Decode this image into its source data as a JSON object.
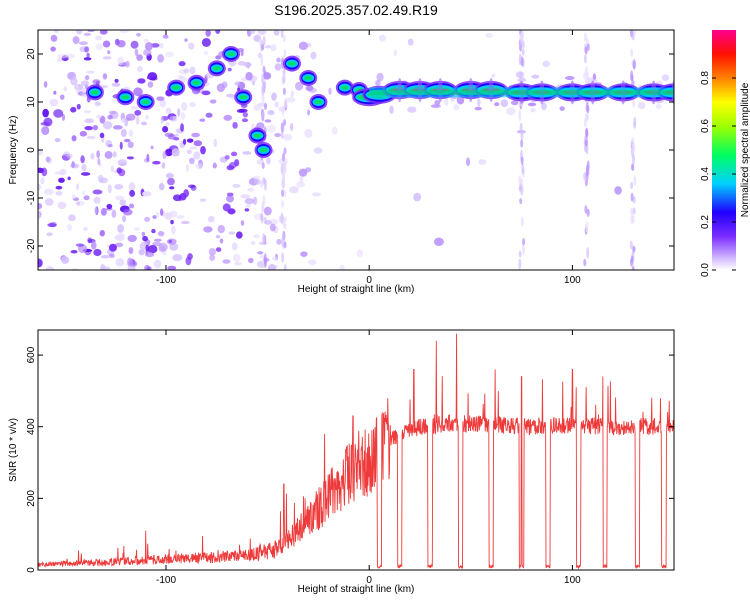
{
  "figure": {
    "title": "S196.2025.357.02.49.R19"
  },
  "colors": {
    "snr_line": "#ee3a3a",
    "spectrogram_ridge_hot": "#e8302a",
    "spectrogram_core": "#00e000",
    "spectrogram_halo": "#00c0ff",
    "spectrogram_noise": "#7a2cff"
  },
  "chart_data": [
    {
      "type": "heatmap",
      "name": "spectrogram",
      "xlabel": "Height of straight line (km)",
      "ylabel": "Frequency (Hz)",
      "xlim": [
        -163,
        150
      ],
      "ylim": [
        -25,
        25
      ],
      "xticks": [
        -100,
        0,
        100
      ],
      "yticks": [
        -20,
        -10,
        0,
        10,
        20
      ],
      "grid": false,
      "colorbar": {
        "label": "Normalized spectral amplitude",
        "range": [
          0,
          1
        ],
        "ticks": [
          0.0,
          0.2,
          0.4,
          0.6,
          0.8
        ],
        "tick_labels": [
          "0.0",
          "0.2",
          "0.4",
          "0.6",
          "0.8"
        ],
        "colormap": [
          "#ffffff",
          "#9a4dff",
          "#2a00ff",
          "#00d8ff",
          "#00ff40",
          "#ffff00",
          "#ff3000",
          "#ff0080"
        ]
      },
      "ridge": [
        {
          "x": -135,
          "y": 12
        },
        {
          "x": -120,
          "y": 11
        },
        {
          "x": -110,
          "y": 10
        },
        {
          "x": -95,
          "y": 13
        },
        {
          "x": -85,
          "y": 14
        },
        {
          "x": -75,
          "y": 17
        },
        {
          "x": -68,
          "y": 20
        },
        {
          "x": -62,
          "y": 11
        },
        {
          "x": -55,
          "y": 3
        },
        {
          "x": -52,
          "y": 0
        },
        {
          "x": -38,
          "y": 18
        },
        {
          "x": -30,
          "y": 15
        },
        {
          "x": -25,
          "y": 10
        },
        {
          "x": -12,
          "y": 13
        },
        {
          "x": -5,
          "y": 12.5
        },
        {
          "x": 0,
          "y": 11
        },
        {
          "x": 5,
          "y": 11.5
        },
        {
          "x": 15,
          "y": 12.5
        },
        {
          "x": 25,
          "y": 12.5
        },
        {
          "x": 35,
          "y": 12.5
        },
        {
          "x": 50,
          "y": 12.5
        },
        {
          "x": 60,
          "y": 12.5
        },
        {
          "x": 75,
          "y": 12
        },
        {
          "x": 85,
          "y": 12
        },
        {
          "x": 100,
          "y": 12
        },
        {
          "x": 110,
          "y": 12
        },
        {
          "x": 125,
          "y": 12
        },
        {
          "x": 140,
          "y": 12
        },
        {
          "x": 150,
          "y": 12
        }
      ]
    },
    {
      "type": "line",
      "name": "snr",
      "xlabel": "Height of straight line (km)",
      "ylabel": "SNR (10 * v/v)",
      "xlim": [
        -163,
        150
      ],
      "ylim": [
        0,
        670
      ],
      "xticks": [
        -100,
        0,
        100
      ],
      "yticks": [
        0,
        200,
        400,
        600
      ],
      "grid": false,
      "envelope": [
        {
          "x": -163,
          "y": 15
        },
        {
          "x": -140,
          "y": 20
        },
        {
          "x": -120,
          "y": 25
        },
        {
          "x": -100,
          "y": 30
        },
        {
          "x": -80,
          "y": 35
        },
        {
          "x": -60,
          "y": 40
        },
        {
          "x": -45,
          "y": 60
        },
        {
          "x": -35,
          "y": 110
        },
        {
          "x": -25,
          "y": 170
        },
        {
          "x": -15,
          "y": 240
        },
        {
          "x": -5,
          "y": 290
        },
        {
          "x": 5,
          "y": 340
        },
        {
          "x": 15,
          "y": 380
        },
        {
          "x": 25,
          "y": 400
        },
        {
          "x": 40,
          "y": 410
        },
        {
          "x": 60,
          "y": 405
        },
        {
          "x": 80,
          "y": 400
        },
        {
          "x": 100,
          "y": 405
        },
        {
          "x": 120,
          "y": 400
        },
        {
          "x": 150,
          "y": 400
        }
      ],
      "dropouts_x": [
        5,
        15,
        30,
        45,
        60,
        75,
        88,
        103,
        116,
        132,
        145
      ],
      "peaks": [
        {
          "x": 33,
          "y": 640
        },
        {
          "x": 43,
          "y": 660
        },
        {
          "x": 22,
          "y": 560
        },
        {
          "x": 62,
          "y": 560
        },
        {
          "x": 75,
          "y": 540
        },
        {
          "x": 100,
          "y": 560
        },
        {
          "x": 115,
          "y": 540
        },
        {
          "x": -8,
          "y": 430
        },
        {
          "x": -22,
          "y": 380
        },
        {
          "x": -42,
          "y": 240
        },
        {
          "x": -82,
          "y": 95
        },
        {
          "x": -110,
          "y": 110
        }
      ]
    }
  ]
}
